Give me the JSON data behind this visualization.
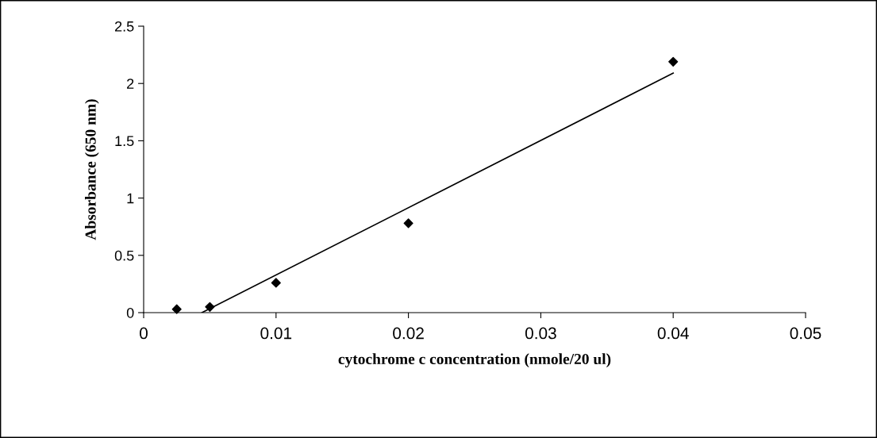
{
  "chart_data": {
    "type": "scatter",
    "xlabel": "cytochrome c concentration (nmole/20 ul)",
    "ylabel": "Absorbance (650 nm)",
    "series": [
      {
        "color": "#000000",
        "marker": "diamond",
        "x": [
          0.0025,
          0.005,
          0.01,
          0.02,
          0.04
        ],
        "values": [
          0.03,
          0.05,
          0.26,
          0.78,
          2.19
        ]
      },
      {
        "type": "line",
        "color": "#000000",
        "marker": "none",
        "line_style": "solid",
        "x": [
          0.0044,
          0.04
        ],
        "values": [
          0,
          2.09
        ]
      }
    ],
    "xlim": [
      0,
      0.05
    ],
    "xticks": [
      0,
      0.01,
      0.02,
      0.03,
      0.04,
      0.05
    ],
    "ylim": [
      0,
      2.5
    ],
    "yticks": [
      0,
      0.5,
      1,
      1.5,
      2,
      2.5
    ],
    "grid": false
  }
}
